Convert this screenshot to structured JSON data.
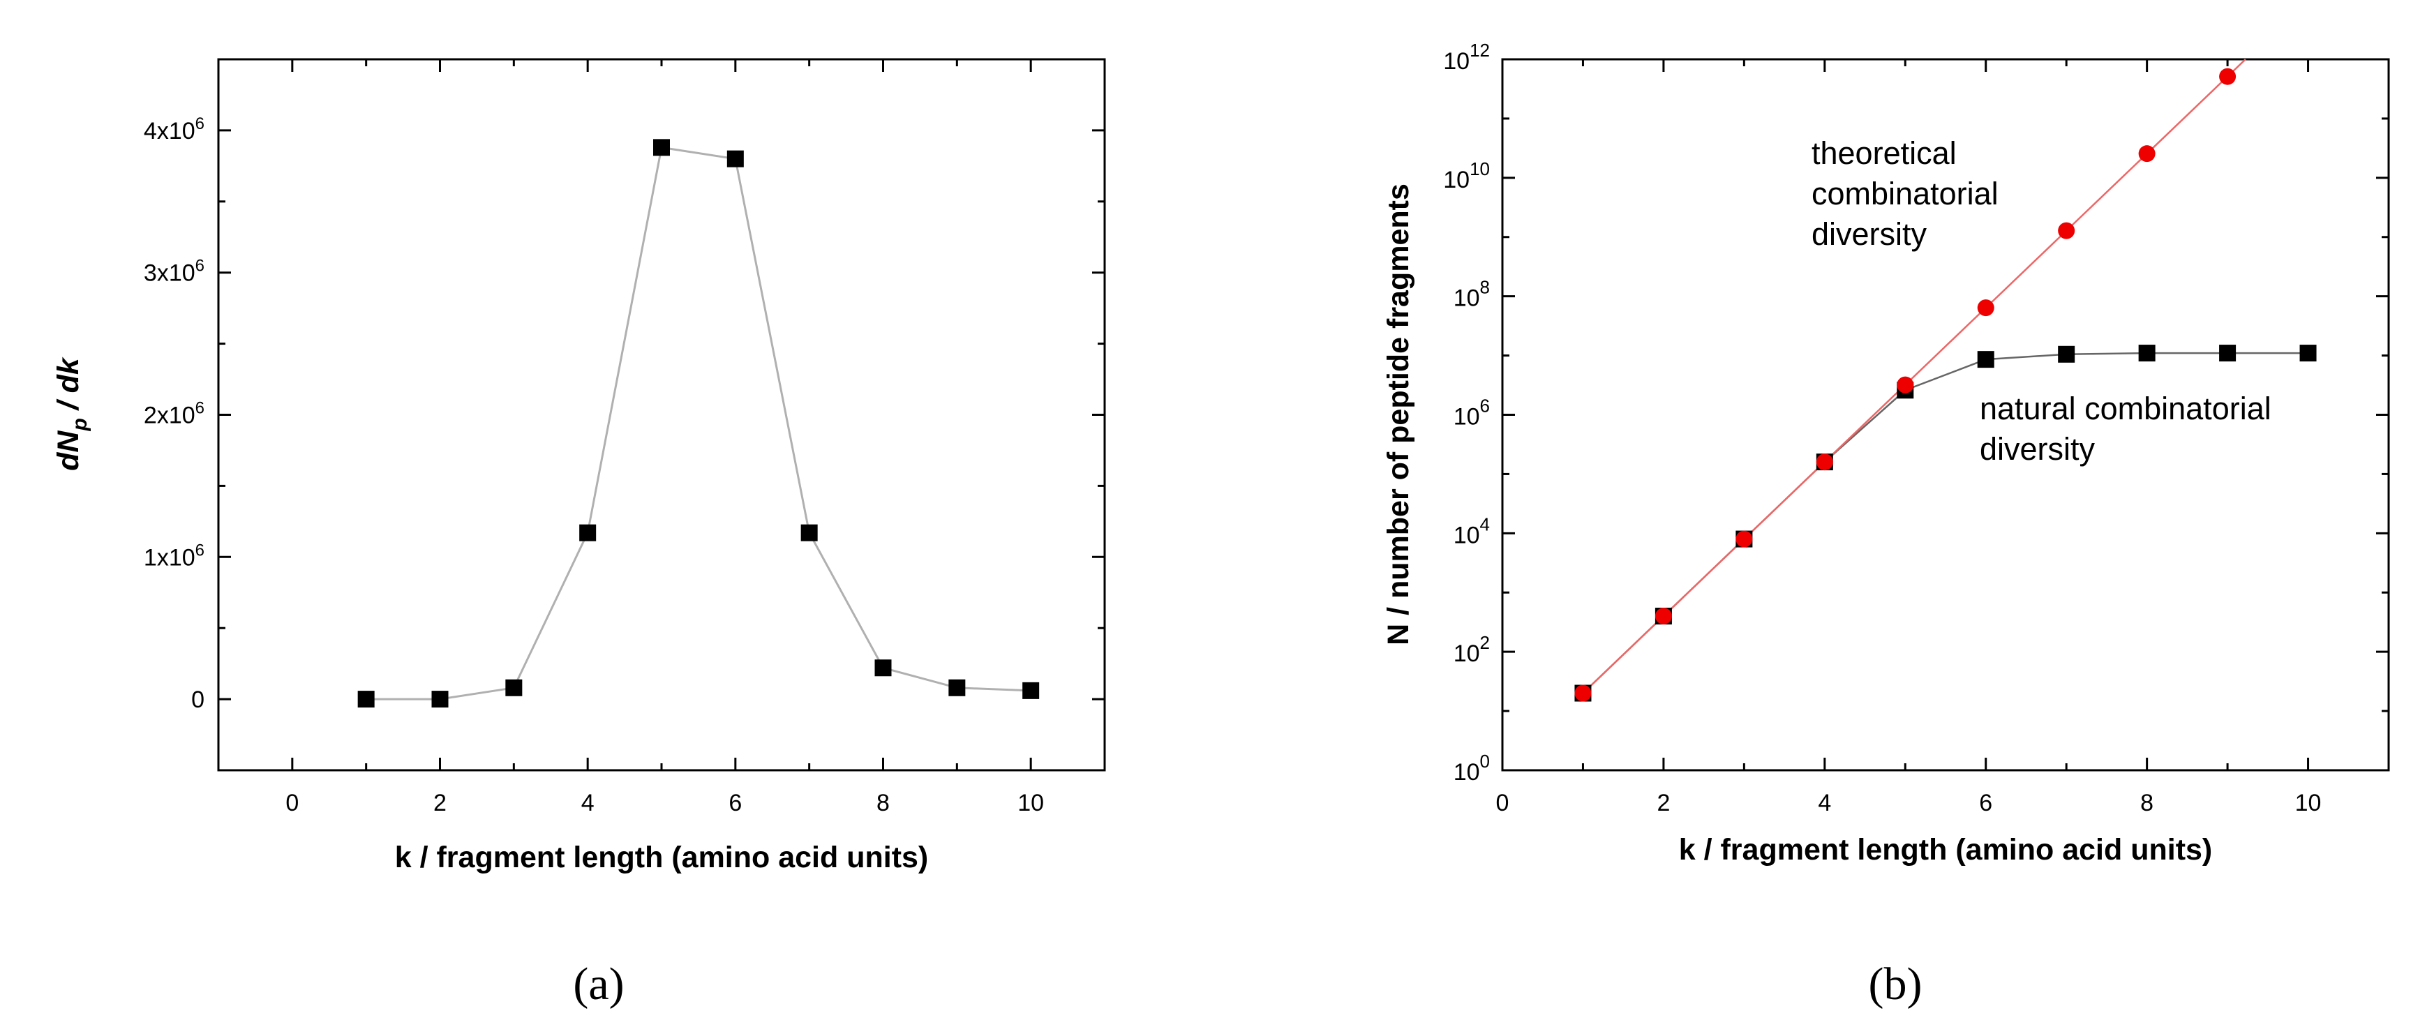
{
  "chart_data": [
    {
      "type": "line",
      "panel_label": "(a)",
      "xlabel": "k / fragment length (amino acid units)",
      "ylabel": "dN_p / dk",
      "xlim": [
        -1,
        11
      ],
      "ylim": [
        -500000,
        4500000
      ],
      "x_ticks": [
        0,
        2,
        4,
        6,
        8,
        10
      ],
      "y_ticks": [
        {
          "value": 0,
          "label": "0"
        },
        {
          "value": 1000000,
          "label": "1x10",
          "exp": "6"
        },
        {
          "value": 2000000,
          "label": "2x10",
          "exp": "6"
        },
        {
          "value": 3000000,
          "label": "3x10",
          "exp": "6"
        },
        {
          "value": 4000000,
          "label": "4x10",
          "exp": "6"
        }
      ],
      "grid": false,
      "series": [
        {
          "marker": "square",
          "marker_color": "#000000",
          "line_color": "#b0b0b0",
          "x": [
            1,
            2,
            3,
            4,
            5,
            6,
            7,
            8,
            9,
            10
          ],
          "y": [
            0,
            0,
            80000,
            1170000,
            3880000,
            3800000,
            1170000,
            220000,
            80000,
            60000
          ]
        }
      ]
    },
    {
      "type": "line",
      "panel_label": "(b)",
      "xlabel": "k / fragment length (amino acid units)",
      "ylabel": "N / number of peptide fragments",
      "y_scale": "log",
      "xlim": [
        0,
        11
      ],
      "ylim": [
        1,
        1000000000000
      ],
      "x_ticks": [
        0,
        2,
        4,
        6,
        8,
        10
      ],
      "y_ticks": [
        {
          "value": 1,
          "label": "10",
          "exp": "0"
        },
        {
          "value": 100,
          "label": "10",
          "exp": "2"
        },
        {
          "value": 10000,
          "label": "10",
          "exp": "4"
        },
        {
          "value": 1000000,
          "label": "10",
          "exp": "6"
        },
        {
          "value": 100000000,
          "label": "10",
          "exp": "8"
        },
        {
          "value": 10000000000,
          "label": "10",
          "exp": "10"
        },
        {
          "value": 1000000000000,
          "label": "10",
          "exp": "12"
        }
      ],
      "grid": false,
      "annotations": [
        {
          "lines": [
            "theoretical",
            "combinatorial",
            "diversity"
          ]
        },
        {
          "lines": [
            "natural combinatorial",
            "diversity"
          ]
        }
      ],
      "series": [
        {
          "marker": "square",
          "marker_color": "#000000",
          "line_color": "#666666",
          "x": [
            1,
            2,
            3,
            4,
            5,
            6,
            7,
            8,
            9,
            10
          ],
          "y": [
            20,
            400,
            8000,
            160000,
            2600000,
            8600000,
            10500000,
            11000000,
            11000000,
            11000000
          ]
        },
        {
          "marker": "circle",
          "marker_color": "#ee0000",
          "line_color": "#ee6666",
          "x": [
            1,
            2,
            3,
            4,
            5,
            6,
            7,
            8,
            9
          ],
          "y": [
            20,
            400,
            8000,
            160000,
            3200000,
            64000000,
            1280000000,
            25600000000,
            512000000000
          ]
        }
      ]
    }
  ]
}
